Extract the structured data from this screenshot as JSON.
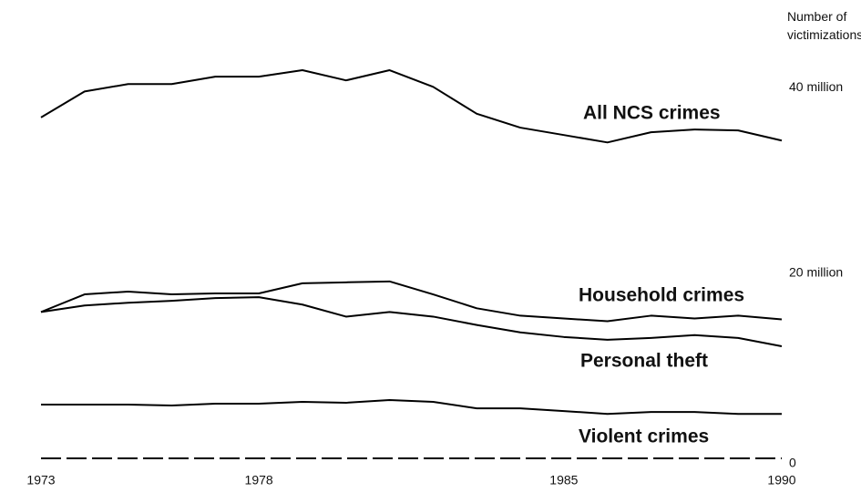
{
  "chart_data": {
    "type": "line",
    "y_label": "Number of victimizations",
    "x": [
      1973,
      1974,
      1975,
      1976,
      1977,
      1978,
      1979,
      1980,
      1981,
      1982,
      1983,
      1984,
      1985,
      1986,
      1987,
      1988,
      1989,
      1990
    ],
    "xlim": [
      1973,
      1990
    ],
    "xticks": [
      1973,
      1978,
      1985,
      1990
    ],
    "ylim": [
      0,
      42
    ],
    "yticks": [
      0,
      {
        "value": 20,
        "label": "20 million"
      },
      {
        "value": 40,
        "label": "40 million"
      }
    ],
    "series": [
      {
        "name": "All NCS crimes",
        "color": "#000000",
        "values": [
          36.8,
          39.6,
          40.4,
          40.4,
          41.2,
          41.2,
          41.9,
          40.8,
          41.9,
          40.1,
          37.2,
          35.7,
          34.9,
          34.1,
          35.2,
          35.5,
          35.4,
          34.3
        ]
      },
      {
        "name": "Household crimes",
        "color": "#000000",
        "values": [
          15.8,
          17.7,
          18.0,
          17.7,
          17.8,
          17.8,
          18.9,
          19.0,
          19.1,
          17.7,
          16.2,
          15.4,
          15.1,
          14.8,
          15.4,
          15.1,
          15.4,
          15.0
        ]
      },
      {
        "name": "Personal theft",
        "color": "#000000",
        "values": [
          15.8,
          16.5,
          16.8,
          17.0,
          17.3,
          17.4,
          16.6,
          15.3,
          15.8,
          15.3,
          14.4,
          13.6,
          13.1,
          12.8,
          13.0,
          13.3,
          13.0,
          12.1
        ]
      },
      {
        "name": "Violent crimes",
        "color": "#000000",
        "values": [
          5.8,
          5.8,
          5.8,
          5.7,
          5.9,
          5.9,
          6.1,
          6.0,
          6.3,
          6.1,
          5.4,
          5.4,
          5.1,
          4.8,
          5.0,
          5.0,
          4.8,
          4.8
        ]
      }
    ]
  }
}
